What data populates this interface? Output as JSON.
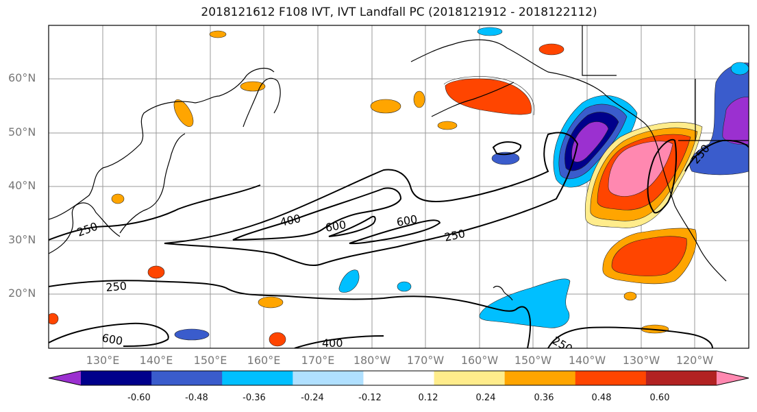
{
  "title": "2018121612 F108 IVT, IVT Landfall PC (2018121912 - 2018122112)",
  "lat_labels": [
    {
      "text": "60°N",
      "value": 60
    },
    {
      "text": "50°N",
      "value": 50
    },
    {
      "text": "40°N",
      "value": 40
    },
    {
      "text": "30°N",
      "value": 30
    },
    {
      "text": "20°N",
      "value": 20
    }
  ],
  "lon_labels": [
    "130°E",
    "140°E",
    "150°E",
    "160°E",
    "170°E",
    "180°W",
    "170°W",
    "160°W",
    "150°W",
    "140°W",
    "130°W",
    "120°W"
  ],
  "contour_labels": [
    "250",
    "400",
    "600",
    "600",
    "250",
    "250",
    "250",
    "600",
    "400",
    "250",
    "250"
  ],
  "colorbar": {
    "colors": [
      "#9b30d0",
      "#00008b",
      "#3a5ccc",
      "#00bfff",
      "#b0e0ff",
      "#ffffff",
      "#ffec8b",
      "#ffa500",
      "#ff4500",
      "#b22222",
      "#ff88b0"
    ],
    "tick_labels": [
      "-0.60",
      "-0.48",
      "-0.36",
      "-0.24",
      "-0.12",
      "0.12",
      "0.24",
      "0.36",
      "0.48",
      "0.60"
    ]
  },
  "colors": {
    "frame": "#000000",
    "grid": "#9a9a9a",
    "coast": "#000000",
    "contour": "#000000"
  }
}
